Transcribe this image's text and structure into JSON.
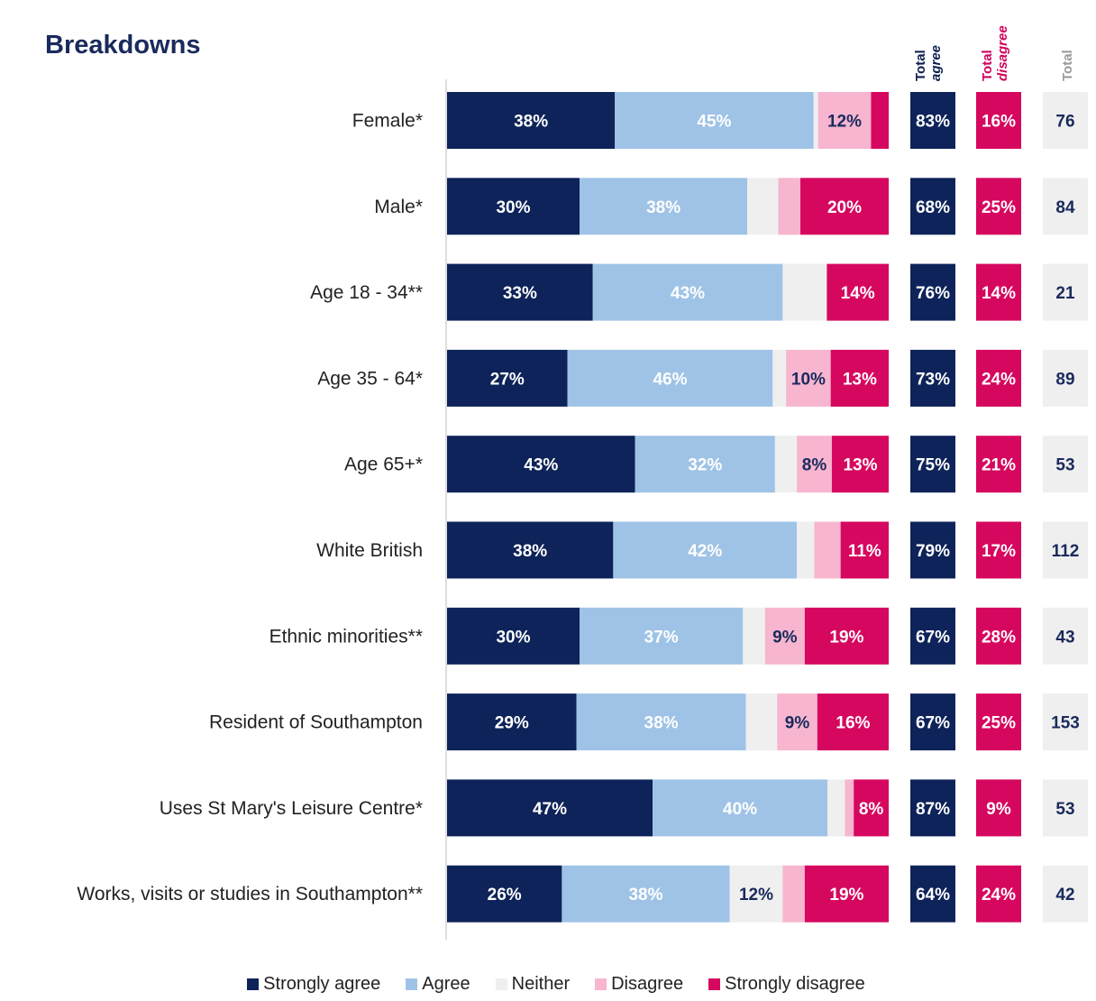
{
  "title": "Breakdowns",
  "headers": {
    "total_agree_line1": "Total",
    "total_agree_line2": "agree",
    "total_disagree_line1": "Total",
    "total_disagree_line2": "disagree",
    "total": "Total"
  },
  "colors": {
    "strongly_agree": "#0d2359",
    "agree": "#9fc3e6",
    "neither": "#efefef",
    "disagree": "#f7b5cf",
    "strongly_disagree": "#d6075f",
    "title": "#1a2a5c",
    "total_bg": "#efefef",
    "total_text": "#1a2a5c"
  },
  "legend": [
    {
      "label": "Strongly agree",
      "color": "#0d2359"
    },
    {
      "label": "Agree",
      "color": "#9fc3e6"
    },
    {
      "label": "Neither",
      "color": "#efefef"
    },
    {
      "label": "Disagree",
      "color": "#f7b5cf"
    },
    {
      "label": "Strongly disagree",
      "color": "#d6075f"
    }
  ],
  "chart_data": {
    "type": "bar",
    "orientation": "horizontal",
    "stacked": true,
    "series_names": [
      "Strongly agree",
      "Agree",
      "Neither",
      "Disagree",
      "Strongly disagree"
    ],
    "categories": [
      "Female*",
      "Male*",
      "Age 18 - 34**",
      "Age 35 - 64*",
      "Age 65+*",
      "White British",
      "Ethnic minorities**",
      "Resident of Southampton",
      "Uses St Mary's Leisure Centre*",
      "Works, visits or studies in Southampton**"
    ],
    "values": [
      [
        38,
        45,
        1,
        12,
        4
      ],
      [
        30,
        38,
        7,
        5,
        20
      ],
      [
        33,
        43,
        10,
        0,
        14
      ],
      [
        27,
        46,
        3,
        10,
        13
      ],
      [
        43,
        32,
        5,
        8,
        13
      ],
      [
        38,
        42,
        4,
        6,
        11
      ],
      [
        30,
        37,
        5,
        9,
        19
      ],
      [
        29,
        38,
        7,
        9,
        16
      ],
      [
        47,
        40,
        4,
        2,
        8
      ],
      [
        26,
        38,
        12,
        5,
        19
      ]
    ],
    "labels": [
      [
        "38%",
        "45%",
        "",
        "12%",
        ""
      ],
      [
        "30%",
        "38%",
        "",
        "",
        "20%"
      ],
      [
        "33%",
        "43%",
        "",
        "",
        "14%"
      ],
      [
        "27%",
        "46%",
        "",
        "10%",
        "13%"
      ],
      [
        "43%",
        "32%",
        "",
        "8%",
        "13%"
      ],
      [
        "38%",
        "42%",
        "",
        "",
        "11%"
      ],
      [
        "30%",
        "37%",
        "",
        "9%",
        "19%"
      ],
      [
        "29%",
        "38%",
        "",
        "9%",
        "16%"
      ],
      [
        "47%",
        "40%",
        "",
        "",
        "8%"
      ],
      [
        "26%",
        "38%",
        "12%",
        "",
        "19%"
      ]
    ],
    "total_agree": [
      "83%",
      "68%",
      "76%",
      "73%",
      "75%",
      "79%",
      "67%",
      "67%",
      "87%",
      "64%"
    ],
    "total_disagree": [
      "16%",
      "25%",
      "14%",
      "24%",
      "21%",
      "17%",
      "28%",
      "25%",
      "9%",
      "24%"
    ],
    "total": [
      "76",
      "84",
      "21",
      "89",
      "53",
      "112",
      "43",
      "153",
      "53",
      "42"
    ],
    "xlim": [
      0,
      100
    ],
    "legend_position": "bottom"
  }
}
